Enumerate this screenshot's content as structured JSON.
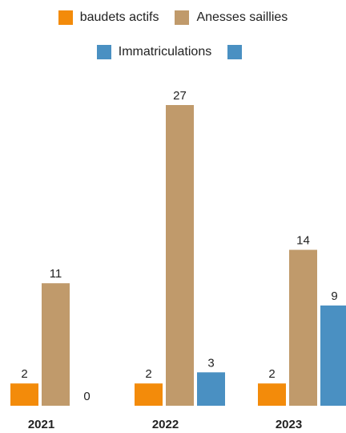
{
  "chart_data": {
    "type": "bar",
    "categories": [
      "2021",
      "2022",
      "2023"
    ],
    "series": [
      {
        "name": "baudets actifs",
        "color": "#F38B0A",
        "values": [
          2,
          2,
          2
        ]
      },
      {
        "name": "Anesses saillies",
        "color": "#C09A6B",
        "values": [
          11,
          27,
          14
        ]
      },
      {
        "name": "Immatriculations",
        "color": "#4A90C2",
        "values": [
          0,
          3,
          9
        ]
      }
    ],
    "extra_legend_swatch_color": "#4A90C2",
    "ylim": [
      0,
      27
    ],
    "grid": false,
    "legend_position": "top"
  }
}
